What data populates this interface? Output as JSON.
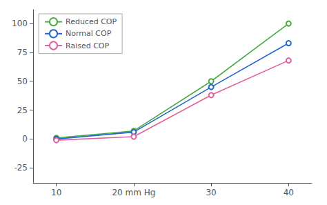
{
  "chart_data": {
    "type": "line",
    "x": [
      10,
      20,
      30,
      40
    ],
    "series": [
      {
        "name": "Reduced COP",
        "color": "#4aaa44",
        "values": [
          1,
          7,
          50,
          100
        ]
      },
      {
        "name": "Normal COP",
        "color": "#2266cc",
        "values": [
          0,
          6,
          45,
          83
        ]
      },
      {
        "name": "Raised COP",
        "color": "#e060a0",
        "values": [
          -1,
          2,
          38,
          68
        ]
      }
    ],
    "xlim": [
      7,
      43
    ],
    "xticks": [
      10,
      {
        "value": 20,
        "label": "20 mm Hg"
      },
      30,
      40
    ],
    "ylim": [
      -38,
      112
    ],
    "yticks": [
      -25,
      0,
      25,
      50,
      75,
      100
    ],
    "marker": "circle",
    "grid": false,
    "legend": "upper left"
  }
}
